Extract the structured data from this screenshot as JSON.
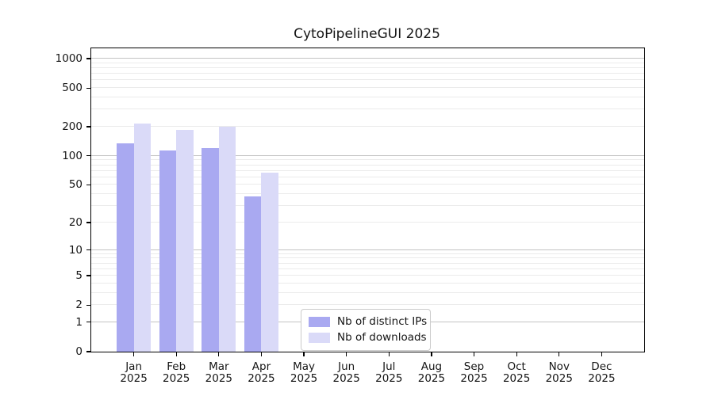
{
  "chart_data": {
    "type": "bar",
    "title": "CytoPipelineGUI 2025",
    "x_categories": [
      {
        "month": "Jan",
        "year": "2025"
      },
      {
        "month": "Feb",
        "year": "2025"
      },
      {
        "month": "Mar",
        "year": "2025"
      },
      {
        "month": "Apr",
        "year": "2025"
      },
      {
        "month": "May",
        "year": "2025"
      },
      {
        "month": "Jun",
        "year": "2025"
      },
      {
        "month": "Jul",
        "year": "2025"
      },
      {
        "month": "Aug",
        "year": "2025"
      },
      {
        "month": "Sep",
        "year": "2025"
      },
      {
        "month": "Oct",
        "year": "2025"
      },
      {
        "month": "Nov",
        "year": "2025"
      },
      {
        "month": "Dec",
        "year": "2025"
      }
    ],
    "series": [
      {
        "name": "Nb of distinct IPs",
        "color": "#a9a9f1",
        "values": [
          136,
          114,
          120,
          38,
          0,
          0,
          0,
          0,
          0,
          0,
          0,
          0
        ]
      },
      {
        "name": "Nb of downloads",
        "color": "#dadaf8",
        "values": [
          215,
          186,
          200,
          67,
          0,
          0,
          0,
          0,
          0,
          0,
          0,
          0
        ]
      }
    ],
    "y_axis": {
      "scale": "log10(1+y)",
      "tick_values": [
        0,
        1,
        2,
        5,
        10,
        20,
        50,
        100,
        200,
        500,
        1000
      ],
      "tick_labels": [
        "0",
        "1",
        "2",
        "5",
        "10",
        "20",
        "50",
        "100",
        "200",
        "500",
        "1000"
      ],
      "ymax": 1285
    },
    "grid": {
      "major_values": [
        1,
        10,
        100,
        1000
      ],
      "minor_values": [
        2,
        3,
        4,
        5,
        6,
        7,
        8,
        9,
        20,
        30,
        40,
        50,
        60,
        70,
        80,
        90,
        200,
        300,
        400,
        500,
        600,
        700,
        800,
        900
      ],
      "major_color": "#c3c3c3",
      "minor_color": "#ebebeb"
    },
    "legend_position": "lower center",
    "axis_color": "#000000",
    "background_color": "#ffffff"
  }
}
